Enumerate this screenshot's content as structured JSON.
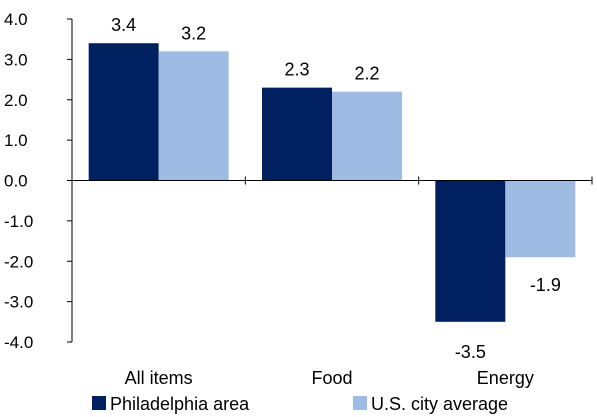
{
  "chart_data": {
    "type": "bar",
    "categories": [
      "All items",
      "Food",
      "Energy"
    ],
    "series": [
      {
        "name": "Philadelphia area",
        "values": [
          3.4,
          2.3,
          -3.5
        ],
        "color": "#002060"
      },
      {
        "name": "U.S. city average",
        "values": [
          3.2,
          2.2,
          -1.9
        ],
        "color": "#9DBBE3"
      }
    ],
    "ylim": [
      -4.0,
      4.0
    ],
    "yticks": [
      "4.0",
      "3.0",
      "2.0",
      "1.0",
      "0.0",
      "-1.0",
      "-2.0",
      "-3.0",
      "-4.0"
    ],
    "data_labels": [
      [
        "3.4",
        "2.3",
        "-3.5"
      ],
      [
        "3.2",
        "2.2",
        "-1.9"
      ]
    ],
    "grid": false,
    "legend_position": "bottom"
  }
}
